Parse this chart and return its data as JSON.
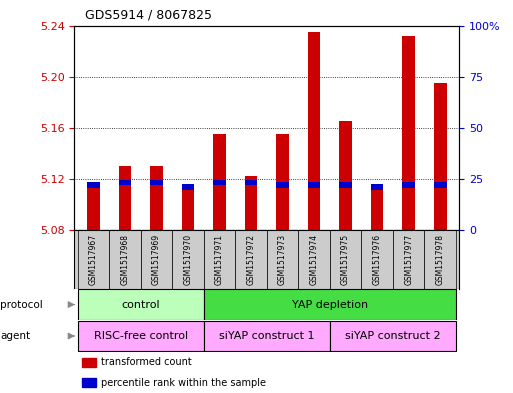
{
  "title": "GDS5914 / 8067825",
  "samples": [
    "GSM1517967",
    "GSM1517968",
    "GSM1517969",
    "GSM1517970",
    "GSM1517971",
    "GSM1517972",
    "GSM1517973",
    "GSM1517974",
    "GSM1517975",
    "GSM1517976",
    "GSM1517977",
    "GSM1517978"
  ],
  "transformed_count": [
    5.115,
    5.13,
    5.13,
    5.114,
    5.155,
    5.122,
    5.155,
    5.235,
    5.165,
    5.113,
    5.232,
    5.195
  ],
  "percentile_rank": [
    22,
    23,
    23,
    21,
    23,
    23,
    22,
    22,
    22,
    21,
    22,
    22
  ],
  "bar_bottom": 5.08,
  "ylim_left": [
    5.08,
    5.24
  ],
  "ylim_right": [
    0,
    100
  ],
  "yticks_left": [
    5.08,
    5.12,
    5.16,
    5.2,
    5.24
  ],
  "yticks_right": [
    0,
    25,
    50,
    75,
    100
  ],
  "ytick_labels_left": [
    "5.08",
    "5.12",
    "5.16",
    "5.20",
    "5.24"
  ],
  "ytick_labels_right": [
    "0",
    "25",
    "50",
    "75",
    "100%"
  ],
  "bar_color": "#cc0000",
  "percentile_color": "#0000cc",
  "protocol_groups": [
    {
      "label": "control",
      "start": 0,
      "end": 3,
      "color": "#bbffbb"
    },
    {
      "label": "YAP depletion",
      "start": 4,
      "end": 11,
      "color": "#44dd44"
    }
  ],
  "agent_groups": [
    {
      "label": "RISC-free control",
      "start": 0,
      "end": 3,
      "color": "#ffaaff"
    },
    {
      "label": "siYAP construct 1",
      "start": 4,
      "end": 7,
      "color": "#ffaaff"
    },
    {
      "label": "siYAP construct 2",
      "start": 8,
      "end": 11,
      "color": "#ffaaff"
    }
  ],
  "legend_items": [
    {
      "color": "#cc0000",
      "label": "transformed count"
    },
    {
      "color": "#0000cc",
      "label": "percentile rank within the sample"
    }
  ],
  "background_color": "#ffffff",
  "tick_color_left": "#cc0000",
  "tick_color_right": "#0000cc",
  "sample_cell_color": "#cccccc",
  "bar_width": 0.4
}
